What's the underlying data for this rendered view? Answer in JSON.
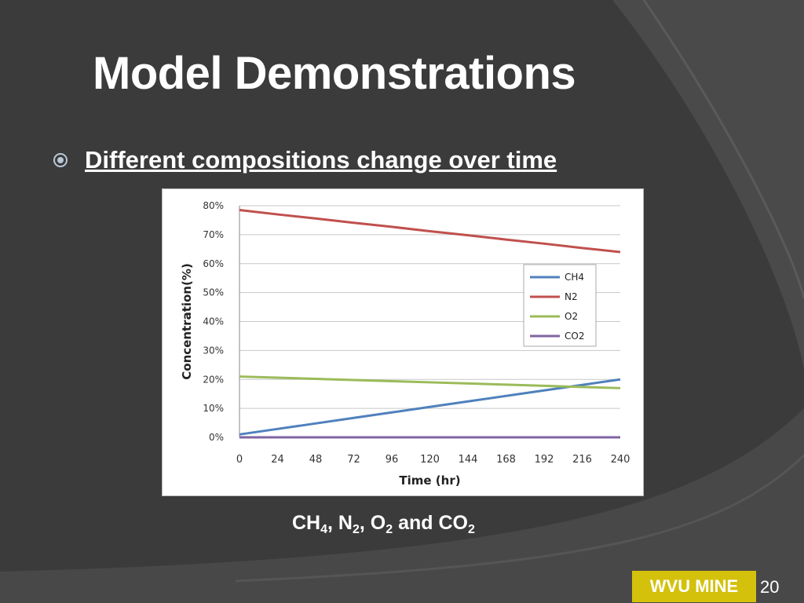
{
  "slide": {
    "title": "Model Demonstrations",
    "bullet": "Different compositions change over time",
    "caption": {
      "parts": [
        {
          "text": "CH",
          "sub": "4"
        },
        {
          "text": ", N",
          "sub": "2"
        },
        {
          "text": ", O",
          "sub": "2"
        },
        {
          "text": " and CO",
          "sub": "2"
        }
      ]
    },
    "footer_badge": "WVU MINE",
    "page_number": "20"
  },
  "colors": {
    "background": "#3b3b3b",
    "accent": "#d4c10c",
    "ch4": "#4f81bd",
    "n2": "#c0504d",
    "o2": "#9bbb59",
    "co2": "#8064a2"
  },
  "chart_data": {
    "type": "line",
    "title": "",
    "xlabel": "Time (hr)",
    "ylabel": "Concentration(%)",
    "x": [
      0,
      24,
      48,
      72,
      96,
      120,
      144,
      168,
      192,
      216,
      240
    ],
    "x_tick_labels": [
      "0",
      "24",
      "48",
      "72",
      "96",
      "120",
      "144",
      "168",
      "192",
      "216",
      "240"
    ],
    "y_tick_labels": [
      "0%",
      "10%",
      "20%",
      "30%",
      "40%",
      "50%",
      "60%",
      "70%",
      "80%"
    ],
    "xlim": [
      0,
      240
    ],
    "ylim": [
      0,
      80
    ],
    "grid": true,
    "legend_position": "right",
    "series": [
      {
        "name": "CH4",
        "color": "#4f81bd",
        "values": [
          1,
          2.9,
          4.8,
          6.7,
          8.6,
          10.5,
          12.4,
          14.3,
          16.2,
          18.1,
          20
        ]
      },
      {
        "name": "N2",
        "color": "#c0504d",
        "values": [
          78.5,
          77.0,
          75.6,
          74.1,
          72.7,
          71.2,
          69.8,
          68.3,
          66.9,
          65.4,
          64
        ]
      },
      {
        "name": "O2",
        "color": "#9bbb59",
        "values": [
          21,
          20.6,
          20.2,
          19.8,
          19.4,
          19.0,
          18.6,
          18.2,
          17.8,
          17.4,
          17
        ]
      },
      {
        "name": "CO2",
        "color": "#8064a2",
        "values": [
          0,
          0,
          0,
          0,
          0,
          0,
          0,
          0,
          0,
          0,
          0
        ]
      }
    ]
  }
}
